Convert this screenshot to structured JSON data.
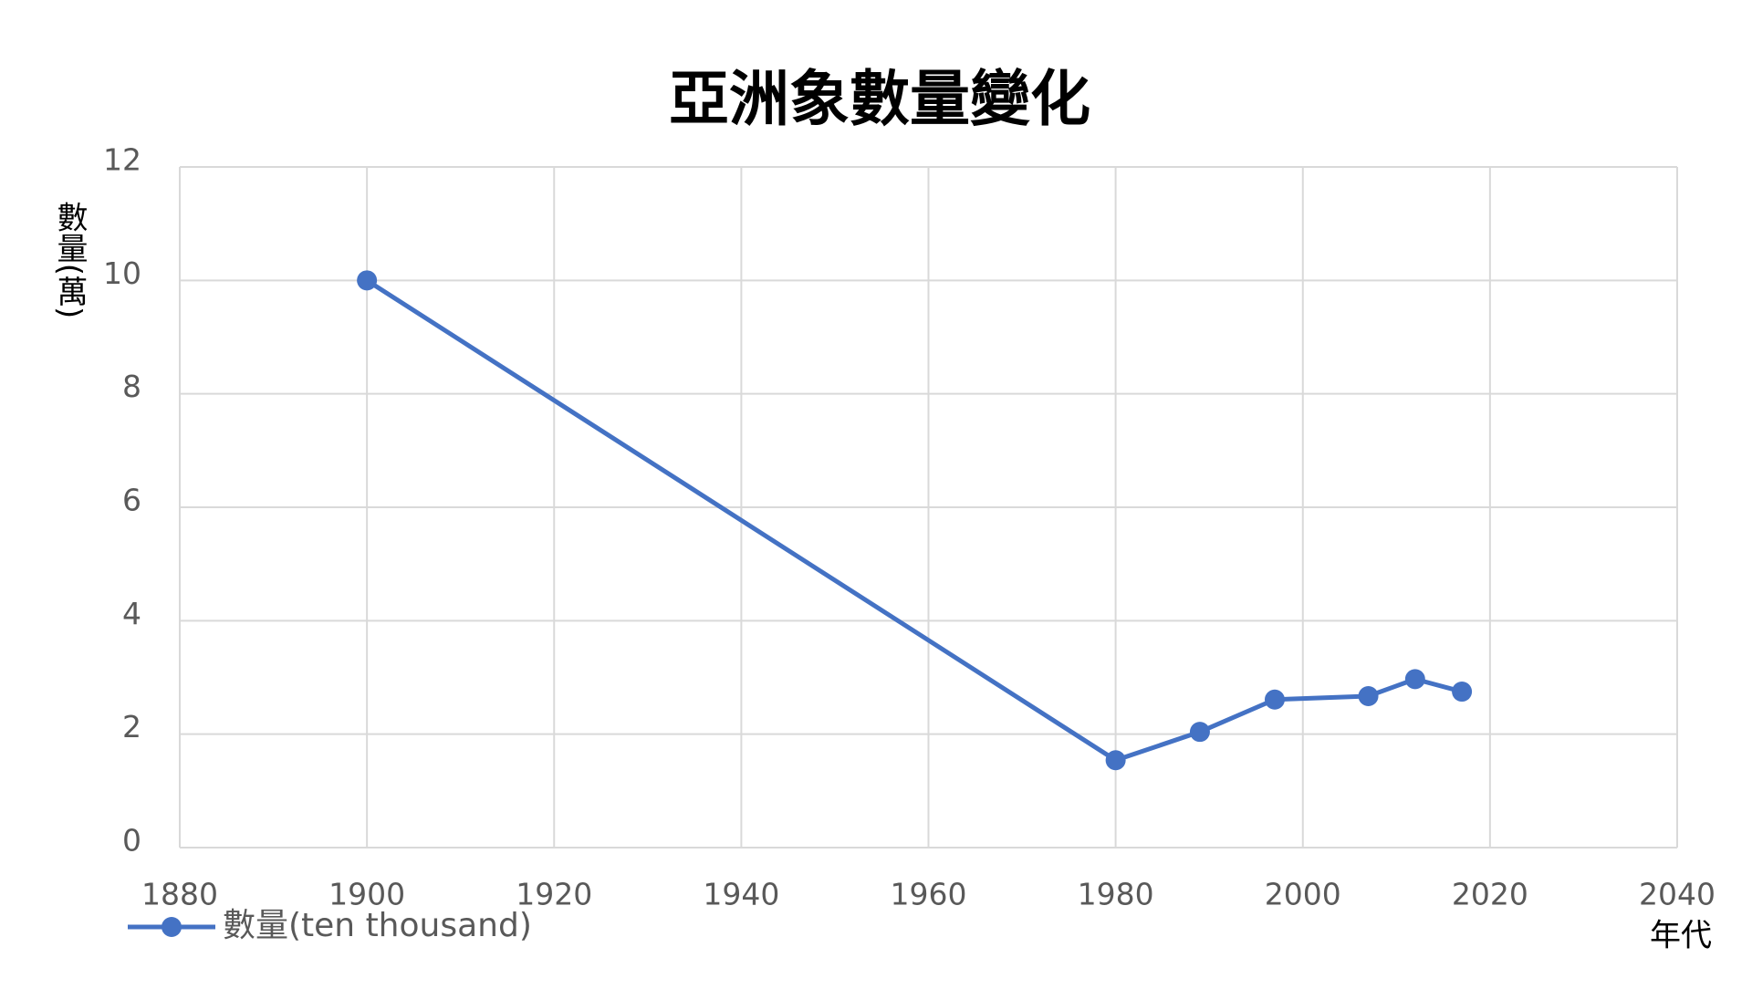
{
  "chart_data": {
    "type": "line",
    "title": "亞洲象數量變化",
    "x_label": "年代",
    "y_label": "數量(萬)",
    "x": [
      1900,
      1980,
      1989,
      1997,
      2007,
      2012,
      2017
    ],
    "series": [
      {
        "name": "數量(ten thousand)",
        "color": "#4472c4",
        "values": [
          10,
          1.54,
          2.04,
          2.61,
          2.67,
          2.97,
          2.75
        ]
      }
    ],
    "xlim": [
      1880,
      2040
    ],
    "xticks": [
      1880,
      1900,
      1920,
      1940,
      1960,
      1980,
      2000,
      2020,
      2040
    ],
    "ylim": [
      0,
      12
    ],
    "yticks": [
      0,
      2,
      4,
      6,
      8,
      10,
      12
    ],
    "grid": true,
    "legend": "bottom-left"
  }
}
